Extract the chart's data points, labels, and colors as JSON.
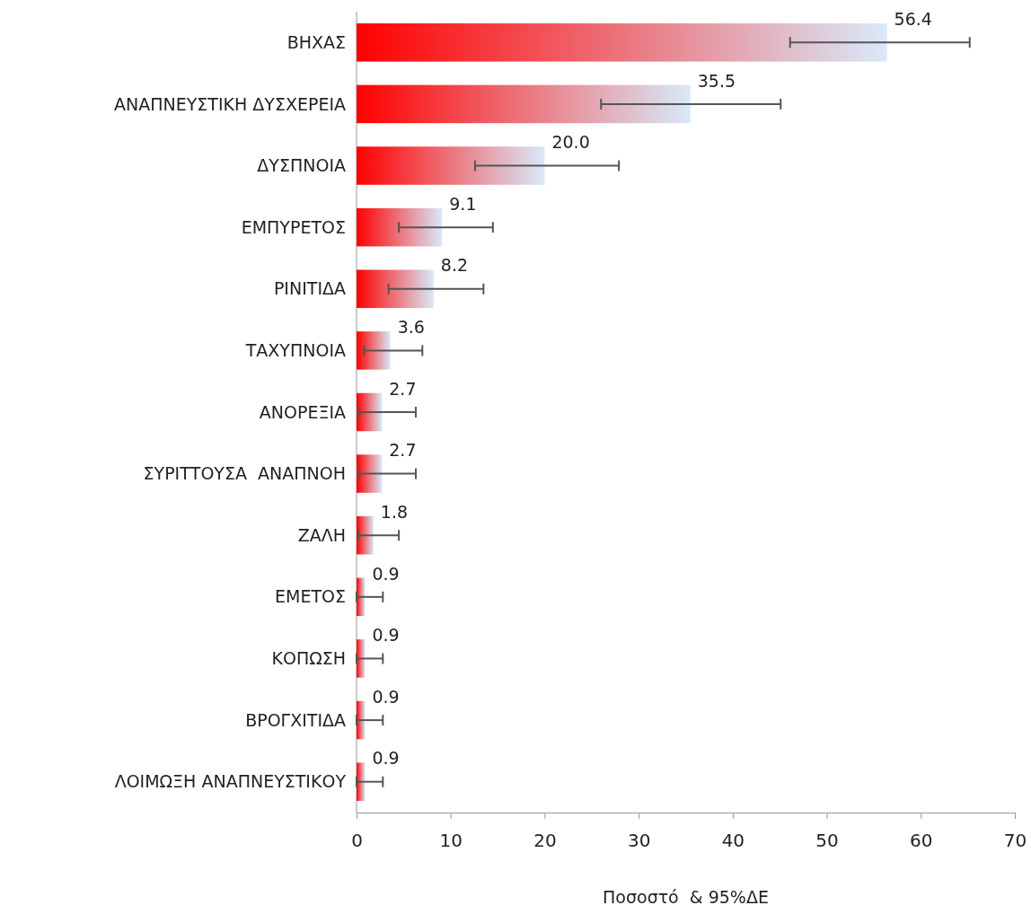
{
  "chart_data": {
    "type": "bar",
    "orientation": "horizontal",
    "xlabel": "Ποσοστό  & 95%ΔΕ",
    "categories": [
      "ΒΗΧΑΣ",
      "ΑΝΑΠΝΕΥΣΤΙΚΗ ΔΥΣΧΕΡΕΙΑ",
      "ΔΥΣΠΝΟΙΑ",
      "ΕΜΠΥΡΕΤΟΣ",
      "ΡΙΝΙΤΙΔΑ",
      "ΤΑΧΥΠΝΟΙΑ",
      "ΑΝΟΡΕΞΙΑ",
      "ΣΥΡΙΤΤΟΥΣΑ  ΑΝΑΠΝΟΗ",
      "ΖΑΛΗ",
      "ΕΜΕΤΟΣ",
      "ΚΟΠΩΣΗ",
      "ΒΡΟΓΧΙΤΙΔΑ",
      "ΛΟΙΜΩΞΗ ΑΝΑΠΝΕΥΣΤΙΚΟΥ"
    ],
    "values": [
      56.4,
      35.5,
      20.0,
      9.1,
      8.2,
      3.6,
      2.7,
      2.7,
      1.8,
      0.9,
      0.9,
      0.9,
      0.9
    ],
    "value_labels": [
      "56.4",
      "35.5",
      "20.0",
      "9.1",
      "8.2",
      "3.6",
      "2.7",
      "2.7",
      "1.8",
      "0.9",
      "0.9",
      "0.9",
      "0.9"
    ],
    "errors": [
      [
        46.1,
        65.2
      ],
      [
        26.0,
        45.1
      ],
      [
        12.6,
        27.9
      ],
      [
        4.5,
        14.5
      ],
      [
        3.4,
        13.5
      ],
      [
        0.8,
        7.0
      ],
      [
        0.3,
        6.3
      ],
      [
        0.3,
        6.3
      ],
      [
        0.2,
        4.5
      ],
      [
        0,
        2.8
      ],
      [
        0,
        2.8
      ],
      [
        0,
        2.8
      ],
      [
        0,
        2.8
      ]
    ],
    "color": "#ff0000",
    "xlim": [
      0,
      70
    ],
    "xticks": [
      0,
      10,
      20,
      30,
      40,
      50,
      60,
      70
    ],
    "grid": false
  }
}
